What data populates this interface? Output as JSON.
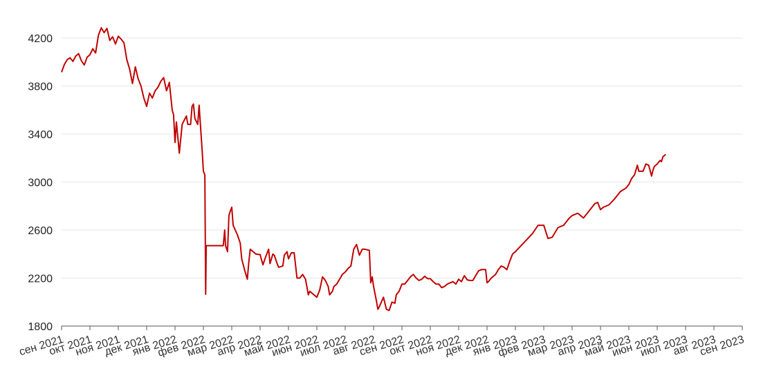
{
  "chart_data": {
    "type": "line",
    "title": "",
    "xlabel": "",
    "ylabel": "",
    "ylim": [
      1800,
      4400
    ],
    "yticks": [
      1800,
      2200,
      2600,
      3000,
      3400,
      3800,
      4200
    ],
    "xticks": [
      "сен 2021",
      "окт 2021",
      "ноя 2021",
      "дек 2021",
      "янв 2022",
      "фев 2022",
      "мар 2022",
      "апр 2022",
      "май 2022",
      "июн 2022",
      "июл 2022",
      "авг 2022",
      "сен 2022",
      "окт 2022",
      "ноя 2022",
      "дек 2022",
      "янв 2023",
      "фев 2023",
      "мар 2023",
      "апр 2023",
      "май 2023",
      "июн 2023",
      "июл 2023",
      "авг 2023",
      "сен 2023"
    ],
    "grid": true,
    "line_color": "#c00000",
    "series": [
      {
        "points": [
          [
            0,
            3915
          ],
          [
            0.1,
            3980
          ],
          [
            0.2,
            4020
          ],
          [
            0.3,
            4035
          ],
          [
            0.4,
            4005
          ],
          [
            0.5,
            4050
          ],
          [
            0.6,
            4070
          ],
          [
            0.7,
            4010
          ],
          [
            0.8,
            3975
          ],
          [
            0.9,
            4040
          ],
          [
            1.0,
            4060
          ],
          [
            1.1,
            4110
          ],
          [
            1.2,
            4075
          ],
          [
            1.3,
            4225
          ],
          [
            1.4,
            4285
          ],
          [
            1.5,
            4245
          ],
          [
            1.6,
            4280
          ],
          [
            1.7,
            4180
          ],
          [
            1.8,
            4210
          ],
          [
            1.9,
            4150
          ],
          [
            2.0,
            4215
          ],
          [
            2.1,
            4190
          ],
          [
            2.2,
            4160
          ],
          [
            2.3,
            4020
          ],
          [
            2.4,
            3940
          ],
          [
            2.5,
            3820
          ],
          [
            2.6,
            3960
          ],
          [
            2.7,
            3860
          ],
          [
            2.8,
            3800
          ],
          [
            2.9,
            3700
          ],
          [
            3.0,
            3630
          ],
          [
            3.1,
            3740
          ],
          [
            3.2,
            3700
          ],
          [
            3.3,
            3760
          ],
          [
            3.4,
            3790
          ],
          [
            3.5,
            3840
          ],
          [
            3.6,
            3870
          ],
          [
            3.7,
            3760
          ],
          [
            3.8,
            3830
          ],
          [
            3.9,
            3600
          ],
          [
            3.95,
            3560
          ],
          [
            4.0,
            3330
          ],
          [
            4.05,
            3500
          ],
          [
            4.15,
            3240
          ],
          [
            4.25,
            3480
          ],
          [
            4.4,
            3550
          ],
          [
            4.45,
            3480
          ],
          [
            4.55,
            3480
          ],
          [
            4.6,
            3630
          ],
          [
            4.65,
            3650
          ],
          [
            4.7,
            3530
          ],
          [
            4.8,
            3480
          ],
          [
            4.85,
            3640
          ],
          [
            4.95,
            3280
          ],
          [
            5.0,
            3090
          ],
          [
            5.05,
            3060
          ],
          [
            5.08,
            2065
          ],
          [
            5.1,
            2470
          ],
          [
            5.2,
            2470
          ],
          [
            5.5,
            2470
          ],
          [
            5.6,
            2470
          ],
          [
            5.7,
            2470
          ],
          [
            5.75,
            2600
          ],
          [
            5.78,
            2470
          ],
          [
            5.85,
            2420
          ],
          [
            5.9,
            2720
          ],
          [
            5.95,
            2760
          ],
          [
            6.0,
            2790
          ],
          [
            6.05,
            2640
          ],
          [
            6.2,
            2560
          ],
          [
            6.3,
            2490
          ],
          [
            6.35,
            2360
          ],
          [
            6.45,
            2270
          ],
          [
            6.55,
            2190
          ],
          [
            6.6,
            2330
          ],
          [
            6.65,
            2440
          ],
          [
            6.75,
            2420
          ],
          [
            6.85,
            2400
          ],
          [
            7.0,
            2395
          ],
          [
            7.1,
            2310
          ],
          [
            7.2,
            2380
          ],
          [
            7.3,
            2440
          ],
          [
            7.35,
            2320
          ],
          [
            7.45,
            2400
          ],
          [
            7.5,
            2390
          ],
          [
            7.6,
            2320
          ],
          [
            7.65,
            2290
          ],
          [
            7.8,
            2300
          ],
          [
            7.85,
            2390
          ],
          [
            7.95,
            2420
          ],
          [
            8.0,
            2360
          ],
          [
            8.1,
            2410
          ],
          [
            8.2,
            2410
          ],
          [
            8.3,
            2200
          ],
          [
            8.4,
            2200
          ],
          [
            8.5,
            2230
          ],
          [
            8.6,
            2190
          ],
          [
            8.7,
            2060
          ],
          [
            8.75,
            2090
          ],
          [
            8.85,
            2070
          ],
          [
            9.0,
            2040
          ],
          [
            9.1,
            2100
          ],
          [
            9.2,
            2210
          ],
          [
            9.3,
            2180
          ],
          [
            9.4,
            2130
          ],
          [
            9.45,
            2060
          ],
          [
            9.55,
            2090
          ],
          [
            9.6,
            2130
          ],
          [
            9.7,
            2150
          ],
          [
            9.8,
            2190
          ],
          [
            9.9,
            2230
          ],
          [
            10.0,
            2250
          ],
          [
            10.1,
            2280
          ],
          [
            10.2,
            2300
          ],
          [
            10.3,
            2440
          ],
          [
            10.4,
            2480
          ],
          [
            10.5,
            2390
          ],
          [
            10.6,
            2440
          ],
          [
            10.7,
            2440
          ],
          [
            10.85,
            2430
          ],
          [
            10.9,
            2160
          ],
          [
            10.95,
            2210
          ],
          [
            11.0,
            2130
          ],
          [
            11.1,
            2010
          ],
          [
            11.15,
            1940
          ],
          [
            11.2,
            1960
          ],
          [
            11.35,
            2040
          ],
          [
            11.45,
            1940
          ],
          [
            11.55,
            1930
          ],
          [
            11.65,
            2000
          ],
          [
            11.75,
            1990
          ],
          [
            11.8,
            2060
          ],
          [
            11.9,
            2090
          ],
          [
            12.0,
            2150
          ],
          [
            12.1,
            2150
          ],
          [
            12.2,
            2180
          ],
          [
            12.3,
            2210
          ],
          [
            12.4,
            2230
          ],
          [
            12.5,
            2200
          ],
          [
            12.6,
            2180
          ],
          [
            12.7,
            2190
          ],
          [
            12.8,
            2215
          ],
          [
            12.9,
            2195
          ],
          [
            13.0,
            2195
          ],
          [
            13.1,
            2170
          ],
          [
            13.2,
            2150
          ],
          [
            13.3,
            2150
          ],
          [
            13.4,
            2120
          ],
          [
            13.5,
            2130
          ],
          [
            13.6,
            2150
          ],
          [
            13.8,
            2170
          ],
          [
            13.9,
            2150
          ],
          [
            14.0,
            2190
          ],
          [
            14.1,
            2170
          ],
          [
            14.2,
            2220
          ],
          [
            14.3,
            2185
          ],
          [
            14.4,
            2180
          ],
          [
            14.5,
            2180
          ],
          [
            14.6,
            2220
          ],
          [
            14.7,
            2260
          ],
          [
            14.8,
            2270
          ],
          [
            14.9,
            2270
          ],
          [
            14.95,
            2270
          ],
          [
            15.0,
            2160
          ],
          [
            15.05,
            2170
          ],
          [
            15.15,
            2200
          ],
          [
            15.3,
            2230
          ],
          [
            15.4,
            2270
          ],
          [
            15.5,
            2300
          ],
          [
            15.6,
            2290
          ],
          [
            15.7,
            2270
          ],
          [
            15.8,
            2340
          ],
          [
            15.9,
            2400
          ],
          [
            16.0,
            2420
          ],
          [
            16.2,
            2470
          ],
          [
            16.4,
            2520
          ],
          [
            16.6,
            2570
          ],
          [
            16.8,
            2640
          ],
          [
            17.0,
            2640
          ],
          [
            17.15,
            2530
          ],
          [
            17.3,
            2540
          ],
          [
            17.5,
            2620
          ],
          [
            17.7,
            2640
          ],
          [
            17.9,
            2700
          ],
          [
            18.0,
            2720
          ],
          [
            18.2,
            2740
          ],
          [
            18.4,
            2700
          ],
          [
            18.6,
            2760
          ],
          [
            18.8,
            2820
          ],
          [
            18.9,
            2830
          ],
          [
            19.0,
            2770
          ],
          [
            19.1,
            2790
          ],
          [
            19.3,
            2810
          ],
          [
            19.5,
            2860
          ],
          [
            19.7,
            2920
          ],
          [
            19.9,
            2950
          ],
          [
            20.0,
            2980
          ],
          [
            20.1,
            3030
          ],
          [
            20.2,
            3060
          ],
          [
            20.3,
            3140
          ],
          [
            20.35,
            3090
          ],
          [
            20.5,
            3090
          ],
          [
            20.6,
            3150
          ],
          [
            20.7,
            3140
          ],
          [
            20.8,
            3050
          ],
          [
            20.85,
            3100
          ],
          [
            20.9,
            3130
          ],
          [
            21.0,
            3150
          ],
          [
            21.1,
            3180
          ],
          [
            21.15,
            3170
          ],
          [
            21.2,
            3210
          ],
          [
            21.3,
            3230
          ]
        ]
      }
    ]
  }
}
